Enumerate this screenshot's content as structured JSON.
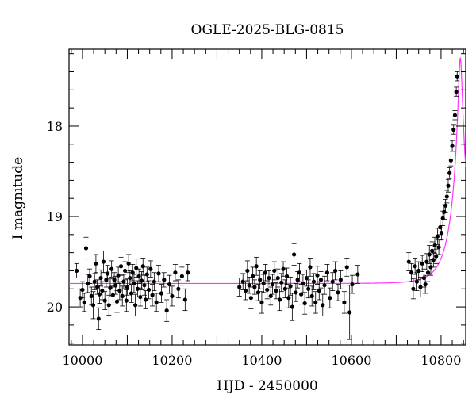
{
  "chart_data": {
    "type": "scatter",
    "title": "OGLE-2025-BLG-0815",
    "xlabel": "HJD - 2450000",
    "ylabel": "I magnitude",
    "xlim": [
      9970,
      10855
    ],
    "ylim": [
      20.42,
      17.15
    ],
    "y_inverted": true,
    "grid": false,
    "x_ticks": [
      10000,
      10200,
      10400,
      10600,
      10800
    ],
    "x_tick_labels": [
      "10000",
      "10200",
      "10400",
      "10600",
      "10800"
    ],
    "y_ticks": [
      18,
      19,
      20
    ],
    "y_tick_labels": [
      "18",
      "19",
      "20"
    ],
    "model_color": "#ff33ff",
    "point_color": "#000000",
    "model": {
      "name": "model",
      "baseline_mag": 19.74,
      "peak_mag": 17.25,
      "t0": 10843,
      "tE": 40
    },
    "series": [
      {
        "name": "observations",
        "points": [
          [
            9987,
            19.6,
            0.08
          ],
          [
            9995,
            19.9,
            0.1
          ],
          [
            10000,
            19.81,
            0.09
          ],
          [
            10004,
            19.95,
            0.1
          ],
          [
            10008,
            19.35,
            0.12
          ],
          [
            10012,
            19.74,
            0.1
          ],
          [
            10016,
            19.66,
            0.08
          ],
          [
            10020,
            19.88,
            0.1
          ],
          [
            10024,
            19.98,
            0.15
          ],
          [
            10027,
            19.72,
            0.09
          ],
          [
            10030,
            19.52,
            0.1
          ],
          [
            10033,
            19.78,
            0.08
          ],
          [
            10036,
            20.13,
            0.12
          ],
          [
            10038,
            19.86,
            0.1
          ],
          [
            10041,
            19.68,
            0.09
          ],
          [
            10044,
            19.82,
            0.1
          ],
          [
            10047,
            19.5,
            0.12
          ],
          [
            10050,
            19.93,
            0.1
          ],
          [
            10053,
            19.7,
            0.08
          ],
          [
            10056,
            19.63,
            0.09
          ],
          [
            10059,
            19.98,
            0.11
          ],
          [
            10062,
            19.79,
            0.1
          ],
          [
            10065,
            19.58,
            0.09
          ],
          [
            10068,
            19.87,
            0.1
          ],
          [
            10071,
            19.7,
            0.08
          ],
          [
            10074,
            19.76,
            0.1
          ],
          [
            10077,
            19.94,
            0.12
          ],
          [
            10080,
            19.65,
            0.09
          ],
          [
            10083,
            19.82,
            0.1
          ],
          [
            10086,
            19.55,
            0.1
          ],
          [
            10089,
            19.88,
            0.11
          ],
          [
            10092,
            19.72,
            0.08
          ],
          [
            10095,
            19.6,
            0.1
          ],
          [
            10098,
            19.93,
            0.12
          ],
          [
            10100,
            19.78,
            0.09
          ],
          [
            10103,
            19.52,
            0.1
          ],
          [
            10106,
            19.68,
            0.08
          ],
          [
            10109,
            19.85,
            0.1
          ],
          [
            10112,
            19.62,
            0.09
          ],
          [
            10115,
            19.74,
            0.1
          ],
          [
            10118,
            19.98,
            0.12
          ],
          [
            10120,
            19.57,
            0.1
          ],
          [
            10123,
            19.8,
            0.09
          ],
          [
            10126,
            19.66,
            0.08
          ],
          [
            10129,
            19.89,
            0.1
          ],
          [
            10132,
            19.71,
            0.1
          ],
          [
            10135,
            19.55,
            0.09
          ],
          [
            10138,
            19.76,
            0.11
          ],
          [
            10141,
            19.92,
            0.1
          ],
          [
            10144,
            19.64,
            0.08
          ],
          [
            10148,
            19.81,
            0.1
          ],
          [
            10152,
            19.58,
            0.09
          ],
          [
            10156,
            19.87,
            0.12
          ],
          [
            10160,
            19.72,
            0.1
          ],
          [
            10165,
            19.95,
            0.1
          ],
          [
            10170,
            19.63,
            0.09
          ],
          [
            10176,
            19.85,
            0.1
          ],
          [
            10182,
            19.7,
            0.08
          ],
          [
            10188,
            20.04,
            0.12
          ],
          [
            10194,
            19.75,
            0.1
          ],
          [
            10200,
            19.88,
            0.11
          ],
          [
            10207,
            19.62,
            0.09
          ],
          [
            10214,
            19.8,
            0.1
          ],
          [
            10222,
            19.66,
            0.1
          ],
          [
            10229,
            19.92,
            0.12
          ],
          [
            10235,
            19.62,
            0.09
          ],
          [
            10350,
            19.78,
            0.1
          ],
          [
            10358,
            19.72,
            0.09
          ],
          [
            10364,
            19.82,
            0.1
          ],
          [
            10368,
            19.6,
            0.11
          ],
          [
            10372,
            19.76,
            0.09
          ],
          [
            10376,
            19.9,
            0.12
          ],
          [
            10380,
            19.66,
            0.1
          ],
          [
            10384,
            19.78,
            0.08
          ],
          [
            10388,
            19.55,
            0.1
          ],
          [
            10392,
            19.84,
            0.09
          ],
          [
            10396,
            19.7,
            0.1
          ],
          [
            10400,
            19.95,
            0.12
          ],
          [
            10404,
            19.74,
            0.1
          ],
          [
            10408,
            19.62,
            0.09
          ],
          [
            10412,
            19.81,
            0.1
          ],
          [
            10416,
            19.68,
            0.08
          ],
          [
            10420,
            19.88,
            0.1
          ],
          [
            10424,
            19.75,
            0.11
          ],
          [
            10428,
            19.6,
            0.1
          ],
          [
            10432,
            19.82,
            0.09
          ],
          [
            10436,
            19.68,
            0.1
          ],
          [
            10440,
            19.92,
            0.12
          ],
          [
            10444,
            19.73,
            0.1
          ],
          [
            10448,
            19.58,
            0.08
          ],
          [
            10452,
            19.8,
            0.1
          ],
          [
            10456,
            19.66,
            0.09
          ],
          [
            10460,
            19.9,
            0.11
          ],
          [
            10464,
            19.77,
            0.1
          ],
          [
            10468,
            20.0,
            0.15
          ],
          [
            10472,
            19.42,
            0.12
          ],
          [
            10476,
            19.84,
            0.1
          ],
          [
            10480,
            19.7,
            0.09
          ],
          [
            10484,
            19.62,
            0.1
          ],
          [
            10488,
            19.86,
            0.11
          ],
          [
            10492,
            19.74,
            0.1
          ],
          [
            10496,
            19.96,
            0.12
          ],
          [
            10500,
            19.68,
            0.09
          ],
          [
            10504,
            19.8,
            0.1
          ],
          [
            10508,
            19.56,
            0.1
          ],
          [
            10512,
            19.88,
            0.11
          ],
          [
            10516,
            19.72,
            0.09
          ],
          [
            10520,
            19.95,
            0.12
          ],
          [
            10524,
            19.65,
            0.1
          ],
          [
            10528,
            19.82,
            0.1
          ],
          [
            10532,
            19.7,
            0.09
          ],
          [
            10536,
            19.98,
            0.12
          ],
          [
            10540,
            19.76,
            0.1
          ],
          [
            10546,
            19.62,
            0.09
          ],
          [
            10552,
            19.9,
            0.11
          ],
          [
            10558,
            19.72,
            0.1
          ],
          [
            10564,
            19.6,
            0.1
          ],
          [
            10570,
            19.84,
            0.09
          ],
          [
            10576,
            19.7,
            0.1
          ],
          [
            10584,
            19.95,
            0.12
          ],
          [
            10590,
            19.56,
            0.1
          ],
          [
            10596,
            20.06,
            0.3
          ],
          [
            10602,
            19.75,
            0.1
          ],
          [
            10614,
            19.64,
            0.1
          ],
          [
            10728,
            19.5,
            0.1
          ],
          [
            10734,
            19.62,
            0.1
          ],
          [
            10738,
            19.8,
            0.11
          ],
          [
            10742,
            19.55,
            0.09
          ],
          [
            10746,
            19.72,
            0.1
          ],
          [
            10750,
            19.6,
            0.1
          ],
          [
            10754,
            19.78,
            0.11
          ],
          [
            10758,
            19.52,
            0.09
          ],
          [
            10762,
            19.68,
            0.1
          ],
          [
            10765,
            19.75,
            0.1
          ],
          [
            10768,
            19.5,
            0.09
          ],
          [
            10771,
            19.62,
            0.1
          ],
          [
            10774,
            19.42,
            0.1
          ],
          [
            10777,
            19.56,
            0.09
          ],
          [
            10780,
            19.38,
            0.1
          ],
          [
            10783,
            19.48,
            0.08
          ],
          [
            10786,
            19.32,
            0.09
          ],
          [
            10789,
            19.44,
            0.08
          ],
          [
            10792,
            19.22,
            0.09
          ],
          [
            10795,
            19.34,
            0.08
          ],
          [
            10798,
            19.12,
            0.08
          ],
          [
            10801,
            19.18,
            0.08
          ],
          [
            10804,
            19.02,
            0.08
          ],
          [
            10807,
            18.95,
            0.08
          ],
          [
            10810,
            18.88,
            0.07
          ],
          [
            10813,
            18.78,
            0.07
          ],
          [
            10816,
            18.66,
            0.07
          ],
          [
            10819,
            18.52,
            0.06
          ],
          [
            10822,
            18.38,
            0.06
          ],
          [
            10825,
            18.22,
            0.06
          ],
          [
            10828,
            18.04,
            0.05
          ],
          [
            10831,
            17.88,
            0.05
          ],
          [
            10834,
            17.62,
            0.05
          ],
          [
            10836,
            17.45,
            0.05
          ]
        ]
      }
    ]
  }
}
